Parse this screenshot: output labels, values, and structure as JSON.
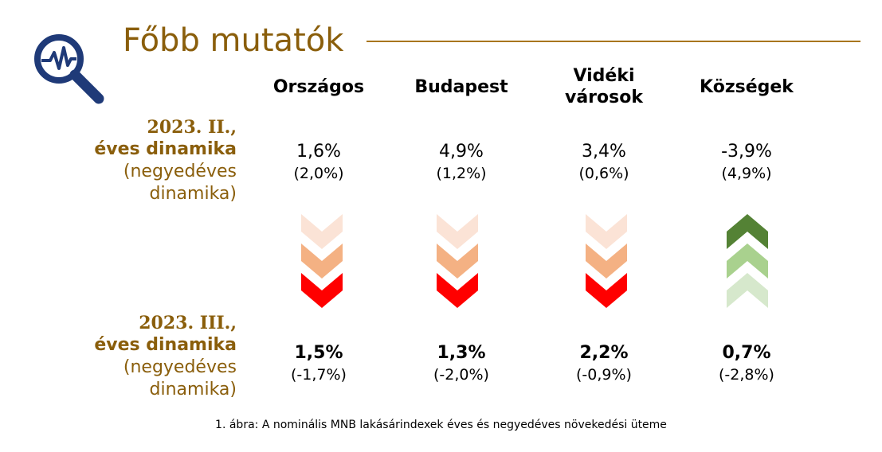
{
  "header": {
    "title": "Főbb mutatók",
    "icon": "magnifier-pulse-icon",
    "accent_color": "#8a5e0b"
  },
  "columns": [
    "Országos",
    "Budapest",
    "Vidéki városok",
    "Községek"
  ],
  "rows": [
    {
      "label_line1": "2023. II.,",
      "label_line2": "éves dinamika",
      "label_line3": "(negyedéves",
      "label_line4": "dinamika)",
      "values": [
        {
          "annual": "1,6%",
          "quarterly": "(2,0%)"
        },
        {
          "annual": "4,9%",
          "quarterly": "(1,2%)"
        },
        {
          "annual": "3,4%",
          "quarterly": "(0,6%)"
        },
        {
          "annual": "-3,9%",
          "quarterly": "(4,9%)"
        }
      ]
    },
    {
      "label_line1": "2023. III.,",
      "label_line2": "éves dinamika",
      "label_line3": "(negyedéves",
      "label_line4": "dinamika)",
      "values": [
        {
          "annual": "1,5%",
          "quarterly": "(-1,7%)"
        },
        {
          "annual": "1,3%",
          "quarterly": "(-2,0%)"
        },
        {
          "annual": "2,2%",
          "quarterly": "(-0,9%)"
        },
        {
          "annual": "0,7%",
          "quarterly": "(-2,8%)"
        }
      ]
    }
  ],
  "trends": [
    {
      "direction": "down",
      "colors": [
        "#fbe3d6",
        "#f4b183",
        "#ff0000"
      ]
    },
    {
      "direction": "down",
      "colors": [
        "#fbe3d6",
        "#f4b183",
        "#ff0000"
      ]
    },
    {
      "direction": "down",
      "colors": [
        "#fbe3d6",
        "#f4b183",
        "#ff0000"
      ]
    },
    {
      "direction": "up",
      "colors": [
        "#548235",
        "#a9d18e",
        "#d6e8cc"
      ]
    }
  ],
  "caption": "1. ábra: A nominális MNB lakásárindexek éves és negyedéves növekedési üteme"
}
